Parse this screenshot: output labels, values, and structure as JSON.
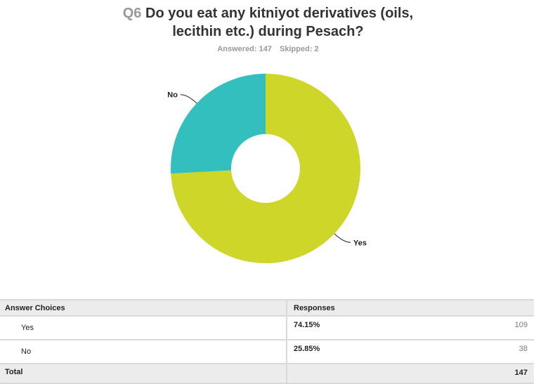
{
  "question": {
    "number": "Q6",
    "text_line1": "Do you eat any kitniyot derivatives (oils,",
    "text_line2": "lecithin etc.) during Pesach?",
    "answered_label": "Answered: 147",
    "skipped_label": "Skipped: 2"
  },
  "chart_data": {
    "type": "pie",
    "donut": true,
    "categories": [
      "Yes",
      "No"
    ],
    "values": [
      74.15,
      25.85
    ],
    "colors": [
      "#cfd62a",
      "#34bfbf"
    ],
    "title": "Do you eat any kitniyot derivatives (oils, lecithin etc.) during Pesach?",
    "legend": "none"
  },
  "table": {
    "header_choices": "Answer Choices",
    "header_responses": "Responses",
    "rows": [
      {
        "choice": "Yes",
        "percent": "74.15%",
        "count": "109"
      },
      {
        "choice": "No",
        "percent": "25.85%",
        "count": "38"
      }
    ],
    "total_label": "Total",
    "total_count": "147"
  }
}
